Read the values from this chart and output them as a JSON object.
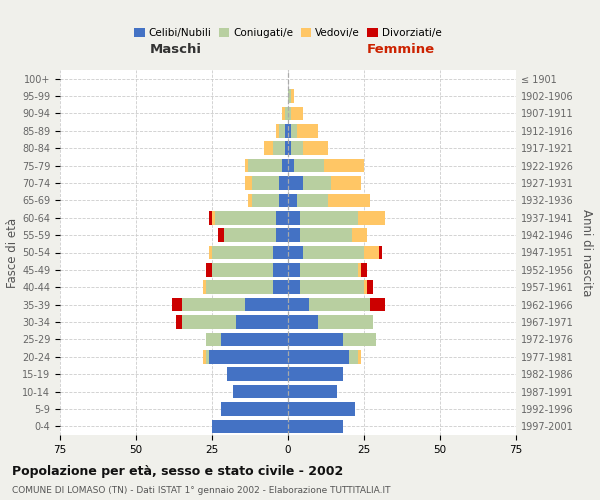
{
  "age_groups": [
    "0-4",
    "5-9",
    "10-14",
    "15-19",
    "20-24",
    "25-29",
    "30-34",
    "35-39",
    "40-44",
    "45-49",
    "50-54",
    "55-59",
    "60-64",
    "65-69",
    "70-74",
    "75-79",
    "80-84",
    "85-89",
    "90-94",
    "95-99",
    "100+"
  ],
  "birth_years": [
    "1997-2001",
    "1992-1996",
    "1987-1991",
    "1982-1986",
    "1977-1981",
    "1972-1976",
    "1967-1971",
    "1962-1966",
    "1957-1961",
    "1952-1956",
    "1947-1951",
    "1942-1946",
    "1937-1941",
    "1932-1936",
    "1927-1931",
    "1922-1926",
    "1917-1921",
    "1912-1916",
    "1907-1911",
    "1902-1906",
    "≤ 1901"
  ],
  "maschi": {
    "celibi": [
      25,
      22,
      18,
      20,
      26,
      22,
      17,
      14,
      5,
      5,
      5,
      4,
      4,
      3,
      3,
      2,
      1,
      1,
      0,
      0,
      0
    ],
    "coniugati": [
      0,
      0,
      0,
      0,
      1,
      5,
      18,
      21,
      22,
      20,
      20,
      17,
      20,
      9,
      9,
      11,
      4,
      2,
      1,
      0,
      0
    ],
    "vedovi": [
      0,
      0,
      0,
      0,
      1,
      0,
      0,
      0,
      1,
      0,
      1,
      0,
      1,
      1,
      2,
      1,
      3,
      1,
      1,
      0,
      0
    ],
    "divorziati": [
      0,
      0,
      0,
      0,
      0,
      0,
      2,
      3,
      0,
      2,
      0,
      2,
      1,
      0,
      0,
      0,
      0,
      0,
      0,
      0,
      0
    ]
  },
  "femmine": {
    "nubili": [
      18,
      22,
      16,
      18,
      20,
      18,
      10,
      7,
      4,
      4,
      5,
      4,
      4,
      3,
      5,
      2,
      1,
      1,
      0,
      0,
      0
    ],
    "coniugate": [
      0,
      0,
      0,
      0,
      3,
      11,
      18,
      20,
      21,
      19,
      20,
      17,
      19,
      10,
      9,
      10,
      4,
      2,
      1,
      1,
      0
    ],
    "vedove": [
      0,
      0,
      0,
      0,
      1,
      0,
      0,
      0,
      1,
      1,
      5,
      5,
      9,
      14,
      10,
      13,
      8,
      7,
      4,
      1,
      0
    ],
    "divorziate": [
      0,
      0,
      0,
      0,
      0,
      0,
      0,
      5,
      2,
      2,
      1,
      0,
      0,
      0,
      0,
      0,
      0,
      0,
      0,
      0,
      0
    ]
  },
  "xlim": 75,
  "colors": {
    "celibi": "#4472c4",
    "coniugati": "#b8cfa0",
    "vedovi": "#ffc665",
    "divorziati": "#cc0000"
  },
  "title": "Popolazione per età, sesso e stato civile - 2002",
  "subtitle": "COMUNE DI LOMASO (TN) - Dati ISTAT 1° gennaio 2002 - Elaborazione TUTTITALIA.IT",
  "ylabel_left": "Fasce di età",
  "ylabel_right": "Anni di nascita",
  "xlabel_left": "Maschi",
  "xlabel_right": "Femmine",
  "bg_color": "#f0f0eb",
  "plot_bg": "#ffffff"
}
